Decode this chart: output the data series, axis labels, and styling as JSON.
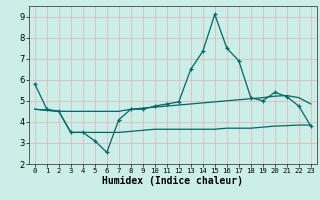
{
  "xlabel": "Humidex (Indice chaleur)",
  "bg_color": "#cceee8",
  "grid_color_minor": "#ddbcbc",
  "line_color": "#006666",
  "xlim": [
    -0.5,
    23.5
  ],
  "ylim": [
    2,
    9.5
  ],
  "yticks": [
    2,
    3,
    4,
    5,
    6,
    7,
    8,
    9
  ],
  "xticks": [
    0,
    1,
    2,
    3,
    4,
    5,
    6,
    7,
    8,
    9,
    10,
    11,
    12,
    13,
    14,
    15,
    16,
    17,
    18,
    19,
    20,
    21,
    22,
    23
  ],
  "x": [
    0,
    1,
    2,
    3,
    4,
    5,
    6,
    7,
    8,
    9,
    10,
    11,
    12,
    13,
    14,
    15,
    16,
    17,
    18,
    19,
    20,
    21,
    22,
    23
  ],
  "line1_y": [
    5.8,
    4.6,
    4.5,
    3.5,
    3.5,
    3.1,
    2.55,
    4.1,
    4.6,
    4.6,
    4.75,
    4.85,
    4.95,
    6.5,
    7.35,
    9.1,
    7.5,
    6.9,
    5.15,
    5.0,
    5.4,
    5.2,
    4.75,
    3.8
  ],
  "line3_y": [
    4.6,
    4.55,
    4.5,
    3.5,
    3.5,
    3.5,
    3.5,
    3.5,
    3.55,
    3.6,
    3.65,
    3.65,
    3.65,
    3.65,
    3.65,
    3.65,
    3.7,
    3.7,
    3.7,
    3.75,
    3.8,
    3.82,
    3.85,
    3.85
  ],
  "line4_y": [
    4.6,
    4.55,
    4.5,
    4.5,
    4.5,
    4.5,
    4.5,
    4.5,
    4.6,
    4.65,
    4.7,
    4.75,
    4.8,
    4.85,
    4.9,
    4.95,
    5.0,
    5.05,
    5.1,
    5.15,
    5.22,
    5.25,
    5.15,
    4.85
  ]
}
